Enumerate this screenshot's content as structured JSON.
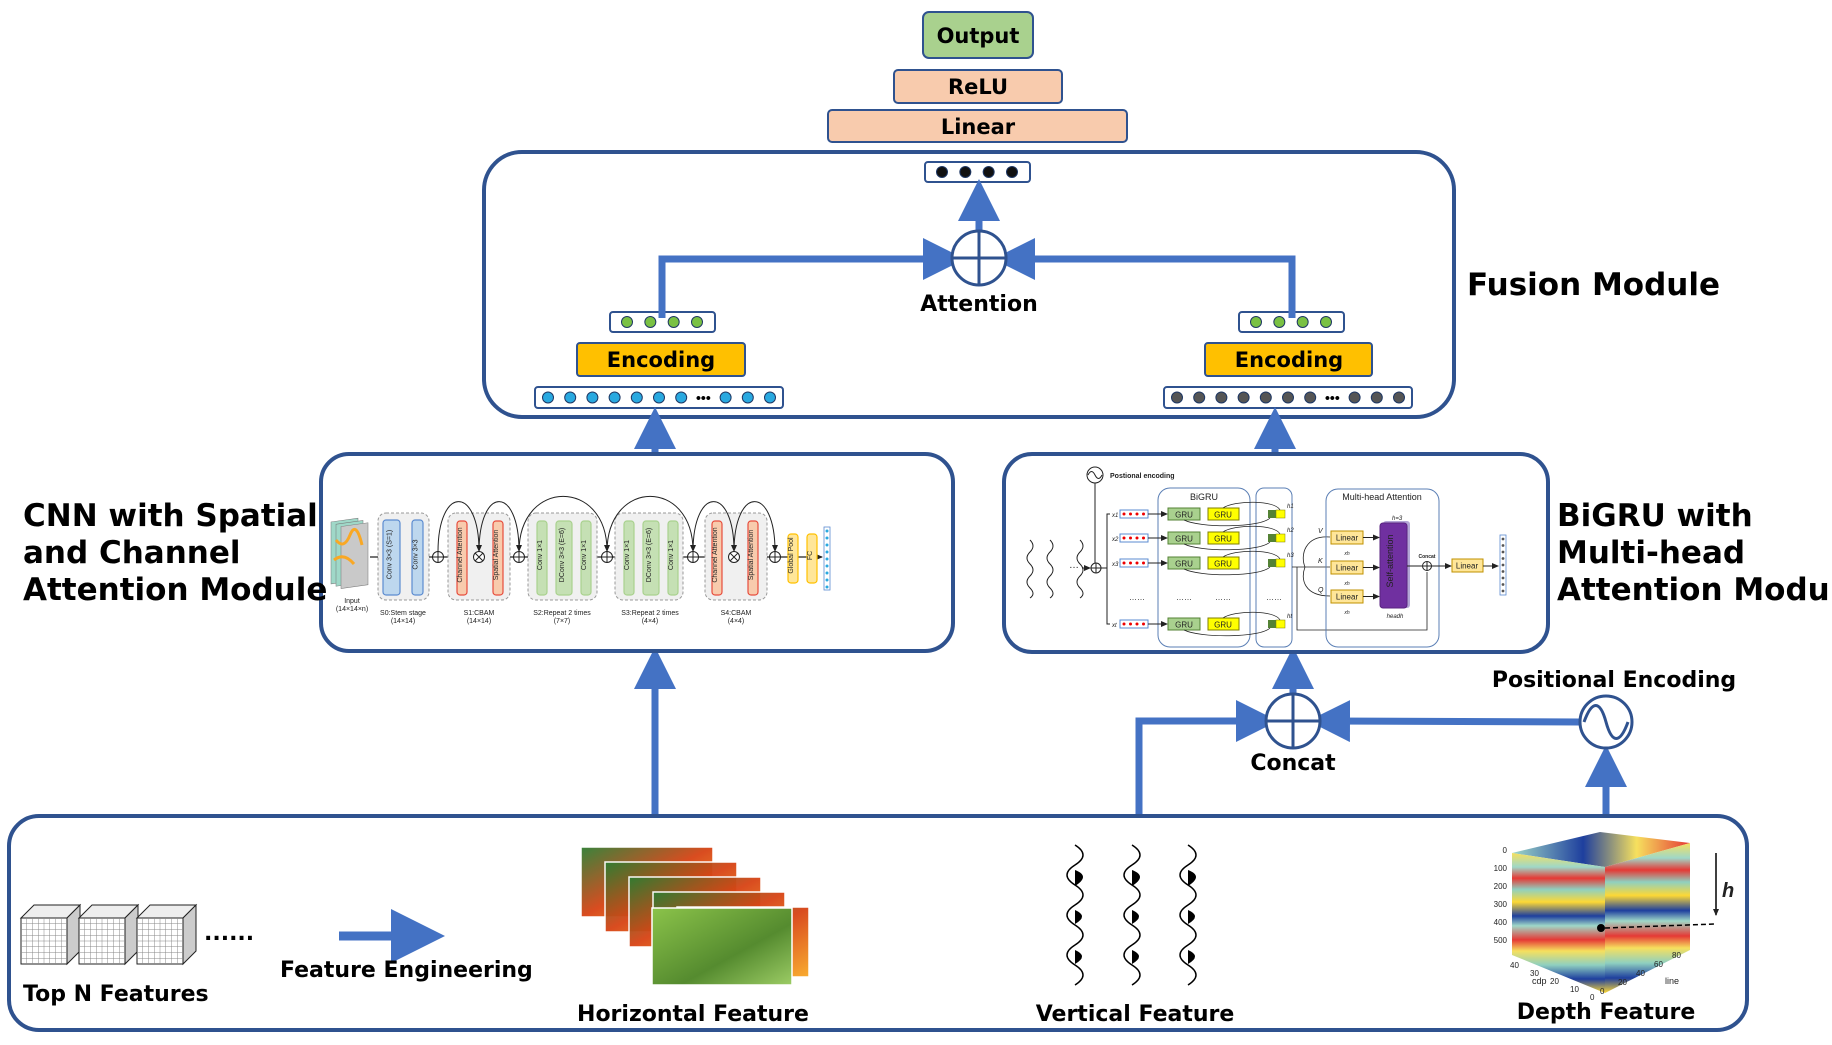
{
  "head": {
    "output": "Output",
    "relu": "ReLU",
    "linear": "Linear"
  },
  "fusion": {
    "title": "Fusion Module",
    "attention": "Attention",
    "encoding_left": "Encoding",
    "encoding_right": "Encoding",
    "ellipsis": "•••"
  },
  "cnn": {
    "title_lines": [
      "CNN with Spatial",
      "and Channel",
      "Attention Module"
    ],
    "input_label": [
      "Input",
      "(14×14×n)"
    ],
    "stage_labels": [
      [
        "S0:Stem stage",
        "(14×14)"
      ],
      [
        "S1:CBAM",
        "(14×14)"
      ],
      [
        "S2:Repeat 2 times",
        "(7×7)"
      ],
      [
        "S3:Repeat 2 times",
        "(4×4)"
      ],
      [
        "S4:CBAM",
        "(4×4)"
      ]
    ],
    "blocks": {
      "conv3_s1": "Conv 3×3 (S=1)",
      "conv3": "Conv 3×3",
      "channel_attention": "Channel Attention",
      "spatial_attention": "Spatial Attention",
      "conv1": "Conv 1×1",
      "dconv": "DConv 3×3 (E=6)",
      "global_pool": "Global Pool",
      "fc": "FC"
    }
  },
  "bigru": {
    "title_lines": [
      "BiGRU with",
      "Multi-head",
      "Attention Module"
    ],
    "positional_encoding": "Postional encoding",
    "bigru_label": "BiGRU",
    "gru": "GRU",
    "x_labels": [
      "x1",
      "x2",
      "x3",
      "xt"
    ],
    "h_labels": [
      "h1",
      "h2",
      "h3",
      "ht"
    ],
    "ellipsis": "……",
    "mha_label": "Multi-head Attention",
    "qkv": [
      "V",
      "K",
      "Q"
    ],
    "xh": "xh",
    "linear": "Linear",
    "h_count": "h=3",
    "self_attention": "Self-attention",
    "head": "headh",
    "concat": "Concat"
  },
  "middle": {
    "concat": "Concat",
    "positional_encoding": "Positional Encoding"
  },
  "bottom": {
    "top_n": "Top N Features",
    "dots": "......",
    "feature_engineering": "Feature Engineering",
    "horizontal": "Horizontal Feature",
    "vertical": "Vertical Feature",
    "depth": "Depth Feature",
    "h": "h",
    "depth_ticks": [
      "0",
      "100",
      "200",
      "300",
      "400",
      "500"
    ],
    "cdp_ticks": [
      "40",
      "30",
      "20",
      "10",
      "0"
    ],
    "line_ticks": [
      "0",
      "20",
      "40",
      "60",
      "80"
    ],
    "cdp_label": "cdp",
    "line_label": "line"
  },
  "colors": {
    "arrow": "#4472C4",
    "frame": "#2F528F",
    "output": "#A9D18E",
    "relu": "#F8CBAD",
    "encoding": "#FFC000"
  }
}
